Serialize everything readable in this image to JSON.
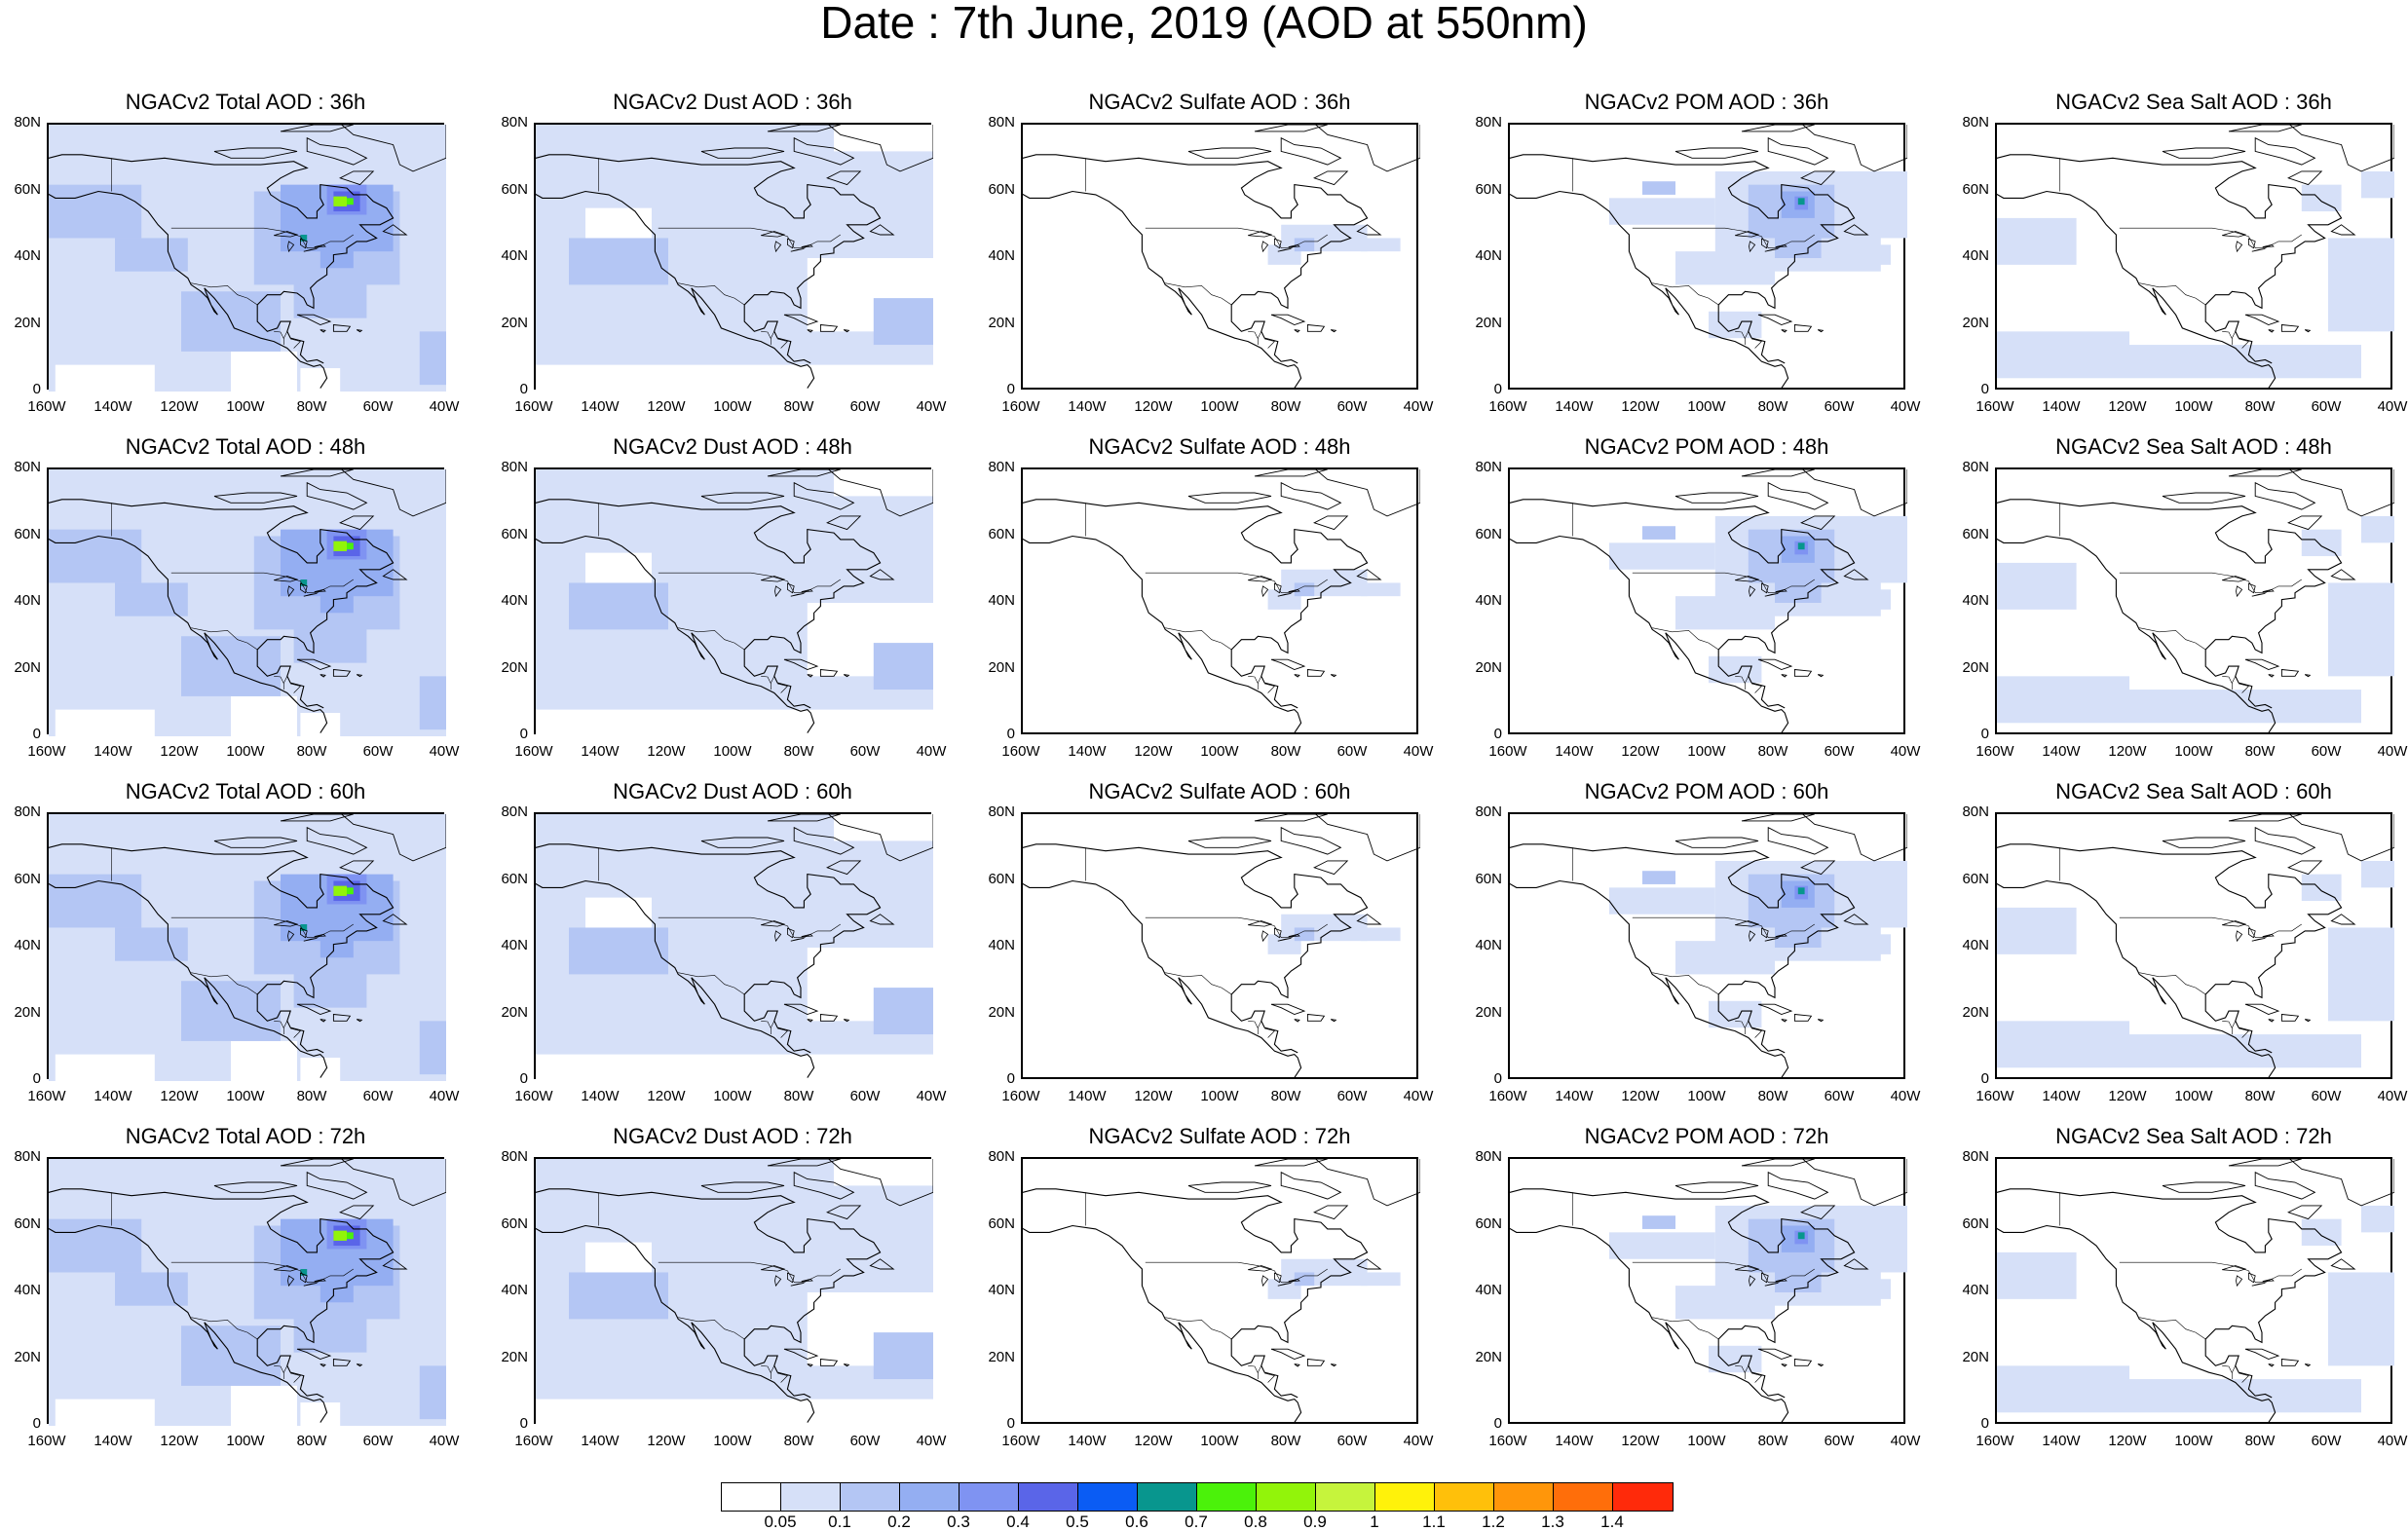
{
  "title": "Date : 7th June, 2019 (AOD at 550nm)",
  "panels": [
    [
      {
        "title": "NGACv2 Total AOD : 36h",
        "species": "total"
      },
      {
        "title": "NGACv2 Dust AOD : 36h",
        "species": "dust"
      },
      {
        "title": "NGACv2 Sulfate AOD : 36h",
        "species": "sulfate"
      },
      {
        "title": "NGACv2 POM AOD : 36h",
        "species": "pom"
      },
      {
        "title": "NGACv2 Sea Salt AOD : 36h",
        "species": "seasalt"
      }
    ],
    [
      {
        "title": "NGACv2 Total AOD : 48h",
        "species": "total"
      },
      {
        "title": "NGACv2 Dust AOD : 48h",
        "species": "dust"
      },
      {
        "title": "NGACv2 Sulfate AOD : 48h",
        "species": "sulfate"
      },
      {
        "title": "NGACv2 POM AOD : 48h",
        "species": "pom"
      },
      {
        "title": "NGACv2 Sea Salt AOD : 48h",
        "species": "seasalt"
      }
    ],
    [
      {
        "title": "NGACv2 Total AOD : 60h",
        "species": "total"
      },
      {
        "title": "NGACv2 Dust AOD : 60h",
        "species": "dust"
      },
      {
        "title": "NGACv2 Sulfate AOD : 60h",
        "species": "sulfate"
      },
      {
        "title": "NGACv2 POM AOD : 60h",
        "species": "pom"
      },
      {
        "title": "NGACv2 Sea Salt AOD : 60h",
        "species": "seasalt"
      }
    ],
    [
      {
        "title": "NGACv2 Total AOD : 72h",
        "species": "total"
      },
      {
        "title": "NGACv2 Dust AOD : 72h",
        "species": "dust"
      },
      {
        "title": "NGACv2 Sulfate AOD : 72h",
        "species": "sulfate"
      },
      {
        "title": "NGACv2 POM AOD : 72h",
        "species": "pom"
      },
      {
        "title": "NGACv2 Sea Salt  AOD : 72h",
        "species": "seasalt"
      }
    ]
  ],
  "y_ticks": [
    "80N",
    "60N",
    "40N",
    "20N",
    "0"
  ],
  "x_ticks": [
    "160W",
    "140W",
    "120W",
    "100W",
    "80W",
    "60W",
    "40W"
  ],
  "colorbar": {
    "colors": [
      "#ffffff",
      "#d6e0f8",
      "#b4c6f4",
      "#94aef2",
      "#7f93f2",
      "#5a65e8",
      "#0a5cf4",
      "#08968e",
      "#4bf20a",
      "#92f40a",
      "#c6f43c",
      "#fff20a",
      "#ffc00a",
      "#ff960a",
      "#ff6e0a",
      "#ff2a0a"
    ],
    "labels": [
      "0.05",
      "0.1",
      "0.2",
      "0.3",
      "0.4",
      "0.5",
      "0.6",
      "0.7",
      "0.8",
      "0.9",
      "1",
      "1.1",
      "1.2",
      "1.3",
      "1.4"
    ]
  }
}
